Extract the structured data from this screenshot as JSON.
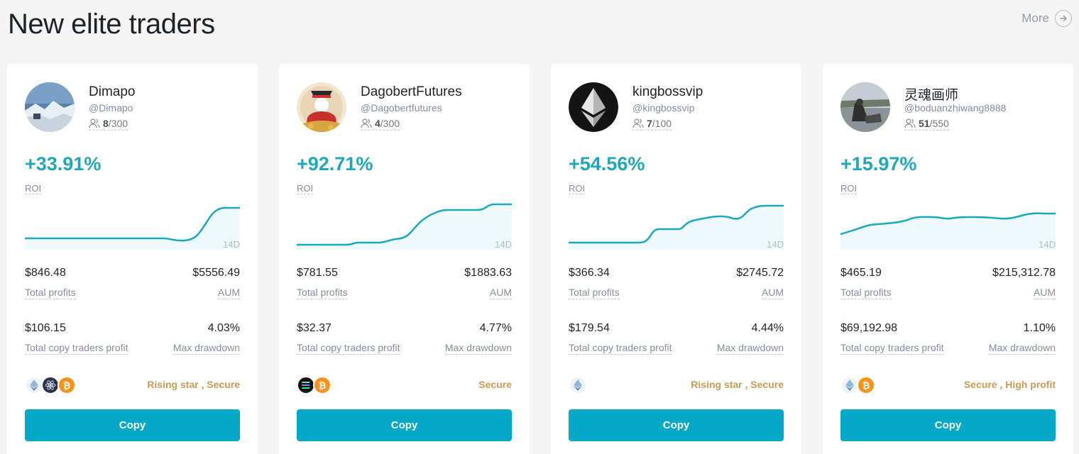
{
  "header": {
    "title": "New elite traders",
    "more_label": "More"
  },
  "cards": [
    {
      "name": "Dimapo",
      "handle": "@Dimapo",
      "followers": "8",
      "capacity": "/300",
      "roi": "+33.91%",
      "roi_label": "ROI",
      "period": "14D",
      "total_profits": "$846.48",
      "total_profits_label": "Total profits",
      "aum": "$5556.49",
      "aum_label": "AUM",
      "copy_profit": "$106.15",
      "copy_profit_label": "Total copy traders profit",
      "drawdown": "4.03%",
      "drawdown_label": "Max drawdown",
      "coins": [
        "eth",
        "cosmos",
        "btc"
      ],
      "tags": "Rising star , Secure",
      "copy_label": "Copy"
    },
    {
      "name": "DagobertFutures",
      "handle": "@Dagobertfutures",
      "followers": "4",
      "capacity": "/300",
      "roi": "+92.71%",
      "roi_label": "ROI",
      "period": "14D",
      "total_profits": "$781.55",
      "total_profits_label": "Total profits",
      "aum": "$1883.63",
      "aum_label": "AUM",
      "copy_profit": "$32.37",
      "copy_profit_label": "Total copy traders profit",
      "drawdown": "4.77%",
      "drawdown_label": "Max drawdown",
      "coins": [
        "sol",
        "btc"
      ],
      "tags": "Secure",
      "copy_label": "Copy"
    },
    {
      "name": "kingbossvip",
      "handle": "@kingbossvip",
      "followers": "7",
      "capacity": "/100",
      "roi": "+54.56%",
      "roi_label": "ROI",
      "period": "14D",
      "total_profits": "$366.34",
      "total_profits_label": "Total profits",
      "aum": "$2745.72",
      "aum_label": "AUM",
      "copy_profit": "$179.54",
      "copy_profit_label": "Total copy traders profit",
      "drawdown": "4.44%",
      "drawdown_label": "Max drawdown",
      "coins": [
        "eth"
      ],
      "tags": "Rising star , Secure",
      "copy_label": "Copy"
    },
    {
      "name": "灵魂画师",
      "handle": "@boduanzhiwang8888",
      "followers": "51",
      "capacity": "/550",
      "roi": "+15.97%",
      "roi_label": "ROI",
      "period": "14D",
      "total_profits": "$465.19",
      "total_profits_label": "Total profits",
      "aum": "$215,312.78",
      "aum_label": "AUM",
      "copy_profit": "$69,192.98",
      "copy_profit_label": "Total copy traders profit",
      "drawdown": "1.10%",
      "drawdown_label": "Max drawdown",
      "coins": [
        "eth",
        "btc"
      ],
      "tags": "Secure , High profit",
      "copy_label": "Copy"
    }
  ],
  "colors": {
    "accent": "#05a8c6",
    "roi": "#20a7b8",
    "tag": "#c99b52"
  }
}
